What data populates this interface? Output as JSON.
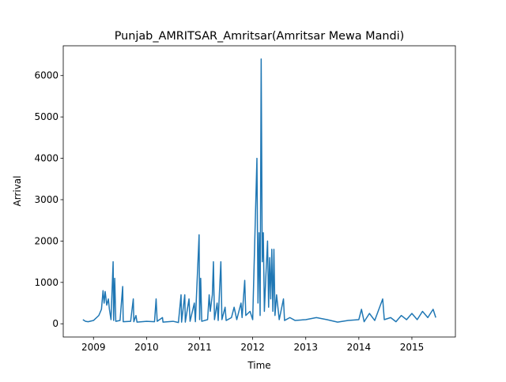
{
  "chart_data": {
    "type": "line",
    "title": "Punjab_AMRITSAR_Amritsar(Amritsar Mewa Mandi)",
    "x_label": "Time",
    "y_label": "Arrival",
    "x": [
      2008.8,
      2008.85,
      2008.9,
      2009.0,
      2009.1,
      2009.15,
      2009.18,
      2009.2,
      2009.22,
      2009.25,
      2009.28,
      2009.3,
      2009.33,
      2009.37,
      2009.38,
      2009.4,
      2009.42,
      2009.5,
      2009.55,
      2009.56,
      2009.7,
      2009.75,
      2009.76,
      2009.8,
      2009.82,
      2010.0,
      2010.15,
      2010.18,
      2010.2,
      2010.3,
      2010.31,
      2010.5,
      2010.6,
      2010.65,
      2010.66,
      2010.72,
      2010.73,
      2010.8,
      2010.82,
      2010.9,
      2010.92,
      2010.99,
      2011.0,
      2011.02,
      2011.04,
      2011.15,
      2011.18,
      2011.2,
      2011.24,
      2011.26,
      2011.28,
      2011.33,
      2011.35,
      2011.4,
      2011.42,
      2011.48,
      2011.5,
      2011.6,
      2011.65,
      2011.7,
      2011.78,
      2011.8,
      2011.85,
      2011.87,
      2011.95,
      2012.0,
      2012.08,
      2012.1,
      2012.12,
      2012.14,
      2012.16,
      2012.18,
      2012.2,
      2012.22,
      2012.25,
      2012.28,
      2012.3,
      2012.32,
      2012.34,
      2012.36,
      2012.38,
      2012.4,
      2012.42,
      2012.45,
      2012.5,
      2012.58,
      2012.6,
      2012.7,
      2012.8,
      2013.0,
      2013.2,
      2013.4,
      2013.6,
      2013.8,
      2014.0,
      2014.05,
      2014.1,
      2014.2,
      2014.3,
      2014.45,
      2014.48,
      2014.6,
      2014.7,
      2014.8,
      2014.9,
      2015.0,
      2015.1,
      2015.2,
      2015.3,
      2015.4,
      2015.45
    ],
    "series": [
      {
        "name": "Arrival",
        "color": "#1f77b4",
        "values": [
          100,
          60,
          50,
          80,
          200,
          350,
          800,
          500,
          780,
          450,
          600,
          350,
          100,
          1500,
          80,
          1100,
          60,
          80,
          900,
          50,
          60,
          600,
          50,
          200,
          40,
          60,
          50,
          600,
          60,
          150,
          40,
          60,
          30,
          700,
          40,
          700,
          40,
          600,
          60,
          500,
          50,
          2150,
          100,
          1100,
          60,
          100,
          700,
          300,
          700,
          1500,
          100,
          500,
          80,
          1500,
          100,
          400,
          80,
          150,
          400,
          100,
          500,
          150,
          1050,
          200,
          300,
          100,
          4000,
          500,
          2200,
          200,
          6400,
          1500,
          2200,
          300,
          1200,
          2000,
          400,
          1600,
          600,
          1800,
          300,
          1800,
          200,
          700,
          100,
          600,
          80,
          150,
          80,
          100,
          150,
          100,
          40,
          80,
          100,
          350,
          50,
          250,
          80,
          600,
          100,
          150,
          50,
          200,
          100,
          250,
          100,
          300,
          150,
          350,
          150
        ]
      }
    ],
    "xlim": [
      2008.43,
      2015.82
    ],
    "xticks": [
      2009,
      2010,
      2011,
      2012,
      2013,
      2014,
      2015
    ],
    "ylim": [
      -320,
      6720
    ],
    "yticks": [
      0,
      1000,
      2000,
      3000,
      4000,
      5000,
      6000
    ],
    "grid": false
  }
}
